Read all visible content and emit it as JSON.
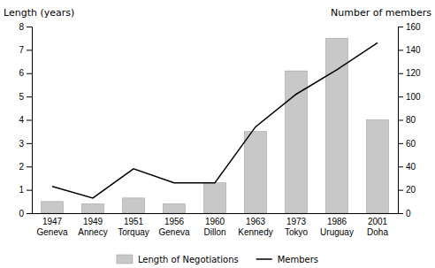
{
  "chart_data": {
    "type": "bar",
    "categories": [
      "1947\nGeneva",
      "1949\nAnnecy",
      "1951\nTorquay",
      "1956\nGeneva",
      "1960\nDillon",
      "1963\nKennedy",
      "1973\nTokyo",
      "1986\nUruguay",
      "2001\nDoha"
    ],
    "series": [
      {
        "name": "Length of Negotiations",
        "type": "bar",
        "color": "#c8c8c8",
        "values": [
          0.5,
          0.4,
          0.65,
          0.4,
          1.3,
          3.5,
          6.1,
          7.5,
          4.0
        ]
      },
      {
        "name": "Members",
        "type": "line",
        "color": "#000000",
        "axis": "y2",
        "values": [
          23,
          13,
          38,
          26,
          26,
          74,
          102,
          123,
          146
        ]
      }
    ],
    "ylabel": "Length (years)",
    "y2label": "Number of members",
    "ylim": [
      0,
      8
    ],
    "yticks": [
      0,
      1,
      2,
      3,
      4,
      5,
      6,
      7,
      8
    ],
    "y2lim": [
      0,
      160
    ],
    "y2ticks": [
      0,
      20,
      40,
      60,
      80,
      100,
      120,
      140,
      160
    ],
    "grid": false,
    "legend": "bottom"
  }
}
